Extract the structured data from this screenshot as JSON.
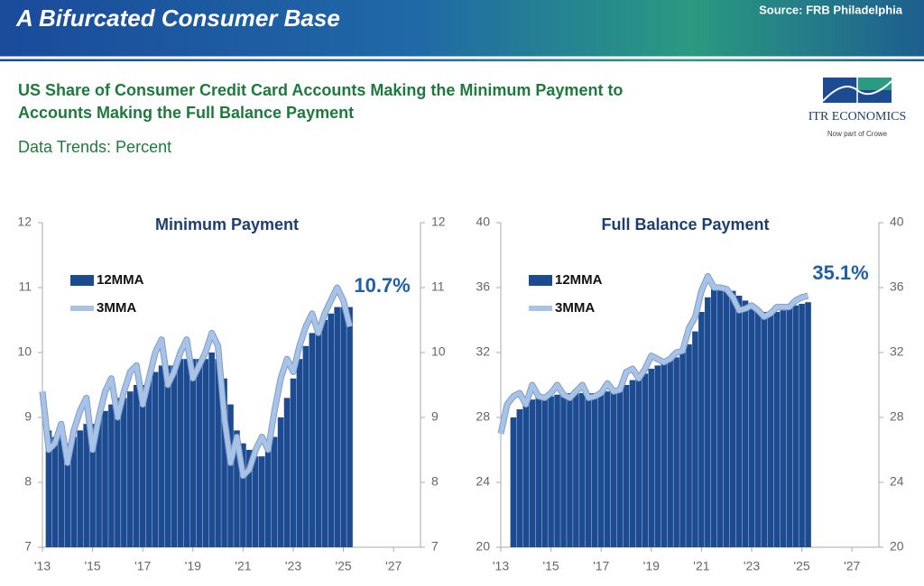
{
  "header": {
    "title": "A Bifurcated Consumer Base",
    "source": "Source: FRB Philadelphia",
    "subtitle": [
      "US Share of Consumer Credit Card Accounts Making the Minimum Payment to",
      "Accounts Making the Full Balance Payment"
    ],
    "units": "Data Trends: Percent",
    "logo": {
      "name": "ITR ECONOMICS",
      "tagline": "Now part of Crowe"
    }
  },
  "chart_data": [
    {
      "type": "bar_line",
      "title": "Minimum Payment",
      "annotation": "10.7%",
      "x": [
        2013,
        2013.25,
        2013.5,
        2013.75,
        2014,
        2014.25,
        2014.5,
        2014.75,
        2015,
        2015.25,
        2015.5,
        2015.75,
        2016,
        2016.25,
        2016.5,
        2016.75,
        2017,
        2017.25,
        2017.5,
        2017.75,
        2018,
        2018.25,
        2018.5,
        2018.75,
        2019,
        2019.25,
        2019.5,
        2019.75,
        2020,
        2020.25,
        2020.5,
        2020.75,
        2021,
        2021.25,
        2021.5,
        2021.75,
        2022,
        2022.25,
        2022.5,
        2022.75,
        2023,
        2023.25,
        2023.5,
        2023.75,
        2024,
        2024.25,
        2024.5,
        2024.75,
        2025,
        2025.25
      ],
      "series": [
        {
          "name": "12MMA",
          "color": "#1d4b92",
          "kind": "bar",
          "values": [
            null,
            8.8,
            8.7,
            8.7,
            8.6,
            8.7,
            8.8,
            8.9,
            8.9,
            9.0,
            9.1,
            9.2,
            9.3,
            9.3,
            9.4,
            9.5,
            9.5,
            9.6,
            9.7,
            9.8,
            9.8,
            9.8,
            9.9,
            9.9,
            9.9,
            9.9,
            9.9,
            10.0,
            9.9,
            9.6,
            9.2,
            8.8,
            8.6,
            8.5,
            8.4,
            8.4,
            8.5,
            8.7,
            9.0,
            9.3,
            9.6,
            9.9,
            10.1,
            10.3,
            10.4,
            10.5,
            10.6,
            10.7,
            10.7,
            10.7
          ]
        },
        {
          "name": "3MMA",
          "color": "#a9c3e6",
          "kind": "line",
          "values": [
            9.4,
            8.5,
            8.6,
            8.9,
            8.3,
            8.8,
            9.1,
            9.3,
            8.5,
            9.0,
            9.4,
            9.6,
            9.0,
            9.4,
            9.7,
            9.8,
            9.2,
            9.6,
            10.0,
            10.2,
            9.5,
            9.7,
            10.0,
            10.2,
            9.6,
            9.8,
            10.0,
            10.3,
            10.1,
            9.0,
            8.3,
            8.7,
            8.1,
            8.2,
            8.5,
            8.7,
            8.5,
            9.1,
            9.6,
            9.9,
            9.7,
            10.1,
            10.4,
            10.6,
            10.3,
            10.6,
            10.8,
            11.0,
            10.8,
            10.4
          ]
        }
      ],
      "xlim": [
        2013,
        2028
      ],
      "xticks": [
        {
          "value": 2013,
          "label": "'13"
        },
        {
          "value": 2015,
          "label": "'15"
        },
        {
          "value": 2017,
          "label": "'17"
        },
        {
          "value": 2019,
          "label": "'19"
        },
        {
          "value": 2021,
          "label": "'21"
        },
        {
          "value": 2023,
          "label": "'23"
        },
        {
          "value": 2025,
          "label": "'25"
        },
        {
          "value": 2027,
          "label": "'27"
        }
      ],
      "ylim": [
        7,
        12
      ],
      "yticks": [
        7,
        8,
        9,
        10,
        11,
        12
      ]
    },
    {
      "type": "bar_line",
      "title": "Full Balance Payment",
      "annotation": "35.1%",
      "x": [
        2013,
        2013.25,
        2013.5,
        2013.75,
        2014,
        2014.25,
        2014.5,
        2014.75,
        2015,
        2015.25,
        2015.5,
        2015.75,
        2016,
        2016.25,
        2016.5,
        2016.75,
        2017,
        2017.25,
        2017.5,
        2017.75,
        2018,
        2018.25,
        2018.5,
        2018.75,
        2019,
        2019.25,
        2019.5,
        2019.75,
        2020,
        2020.25,
        2020.5,
        2020.75,
        2021,
        2021.25,
        2021.5,
        2021.75,
        2022,
        2022.25,
        2022.5,
        2022.75,
        2023,
        2023.25,
        2023.5,
        2023.75,
        2024,
        2024.25,
        2024.5,
        2024.75,
        2025,
        2025.25
      ],
      "series": [
        {
          "name": "12MMA",
          "color": "#1d4b92",
          "kind": "bar",
          "values": [
            null,
            null,
            28.0,
            28.5,
            28.9,
            29.1,
            29.2,
            29.3,
            29.3,
            29.4,
            29.4,
            29.5,
            29.5,
            29.5,
            29.5,
            29.5,
            29.6,
            29.6,
            29.7,
            29.7,
            30.0,
            30.3,
            30.5,
            30.7,
            31.0,
            31.2,
            31.3,
            31.5,
            31.7,
            32.0,
            32.5,
            33.3,
            34.5,
            35.4,
            35.9,
            36.0,
            36.0,
            35.8,
            35.5,
            35.2,
            34.9,
            34.7,
            34.5,
            34.4,
            34.5,
            34.6,
            34.7,
            34.9,
            35.0,
            35.1
          ]
        },
        {
          "name": "3MMA",
          "color": "#a9c3e6",
          "kind": "line",
          "values": [
            27.0,
            28.8,
            29.3,
            29.5,
            28.8,
            30.0,
            29.3,
            29.2,
            29.5,
            30.0,
            29.4,
            29.2,
            29.6,
            30.0,
            29.2,
            29.3,
            29.5,
            30.1,
            29.6,
            29.7,
            30.8,
            31.0,
            30.4,
            31.0,
            31.8,
            31.6,
            31.4,
            31.6,
            32.0,
            32.1,
            33.5,
            34.2,
            35.8,
            36.7,
            36.0,
            36.0,
            35.9,
            35.4,
            34.6,
            34.7,
            34.9,
            34.6,
            34.2,
            34.4,
            34.8,
            34.8,
            34.8,
            35.2,
            35.4,
            35.5
          ]
        }
      ],
      "xlim": [
        2013,
        2028
      ],
      "xticks": [
        {
          "value": 2013,
          "label": "'13"
        },
        {
          "value": 2015,
          "label": "'15"
        },
        {
          "value": 2017,
          "label": "'17"
        },
        {
          "value": 2019,
          "label": "'19"
        },
        {
          "value": 2021,
          "label": "'21"
        },
        {
          "value": 2023,
          "label": "'23"
        },
        {
          "value": 2025,
          "label": "'25"
        },
        {
          "value": 2027,
          "label": "'27"
        }
      ],
      "ylim": [
        20,
        40
      ],
      "yticks": [
        20,
        24,
        28,
        32,
        36,
        40
      ]
    }
  ]
}
